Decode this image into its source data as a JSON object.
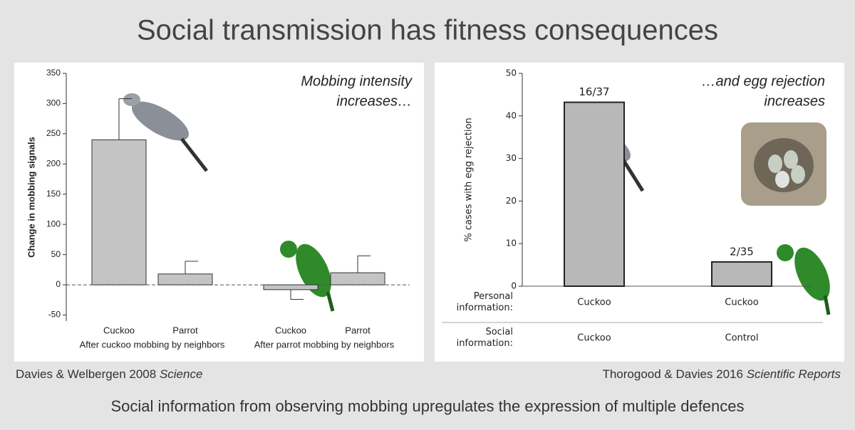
{
  "title": "Social transmission has fitness consequences",
  "chart_data": [
    {
      "type": "bar",
      "ylabel": "Change in mobbing signals",
      "annotation": [
        "Mobbing intensity",
        "increases…"
      ],
      "categories": [
        "Cuckoo",
        "Parrot",
        "Cuckoo",
        "Parrot"
      ],
      "group_labels": [
        "After cuckoo mobbing by neighbors",
        "After parrot mobbing by neighbors"
      ],
      "values": [
        240,
        18,
        -8,
        20
      ],
      "errors": [
        68,
        21,
        16,
        28
      ],
      "color": "#c4c4c4",
      "ylim": [
        -60,
        350
      ],
      "yticks": [
        -50,
        0,
        50,
        100,
        150,
        200,
        250,
        300,
        350
      ]
    },
    {
      "type": "bar",
      "ylabel": "% cases with egg rejection",
      "annotation": [
        "…and egg rejection",
        "increases"
      ],
      "values": [
        43.2,
        5.7
      ],
      "value_labels": [
        "16/37",
        "2/35"
      ],
      "color": "#b8b8b8",
      "category_rows": [
        {
          "name": "Personal information:",
          "labels": [
            "Cuckoo",
            "Cuckoo"
          ]
        },
        {
          "name": "Social information:",
          "labels": [
            "Cuckoo",
            "Control"
          ]
        }
      ],
      "ylim": [
        0,
        50
      ],
      "yticks": [
        0,
        10,
        20,
        30,
        40,
        50
      ]
    }
  ],
  "citations": [
    {
      "authors": "Davies & Welbergen 2008",
      "journal": "Science"
    },
    {
      "authors": "Thorogood & Davies 2016",
      "journal": "Scientific Reports"
    }
  ],
  "footer": "Social information from observing mobbing upregulates the expression of multiple defences"
}
